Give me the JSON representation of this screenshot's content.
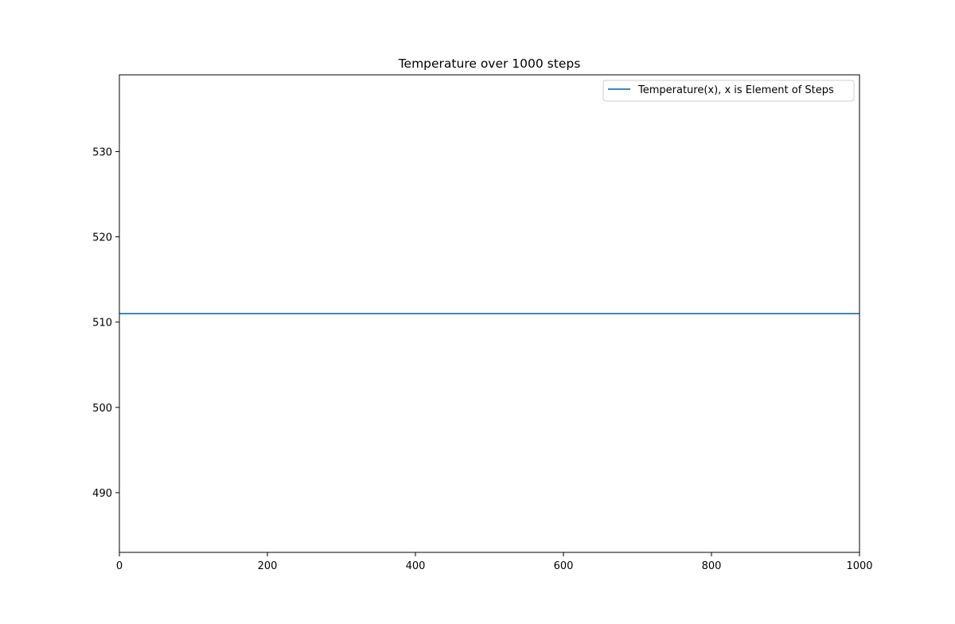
{
  "chart_data": {
    "type": "line",
    "title": "Temperature over  1000 steps",
    "xlabel": "",
    "ylabel": "",
    "xlim": [
      0,
      1000
    ],
    "ylim": [
      483,
      539
    ],
    "x_ticks": [
      0,
      200,
      400,
      600,
      800,
      1000
    ],
    "y_ticks": [
      490,
      500,
      510,
      520,
      530
    ],
    "grid": false,
    "legend_position": "top-right",
    "series": [
      {
        "name": "Temperature(x), x is Element of Steps",
        "color": "#1f77b4",
        "x": [
          0,
          1000
        ],
        "y": [
          511,
          511
        ]
      }
    ]
  }
}
